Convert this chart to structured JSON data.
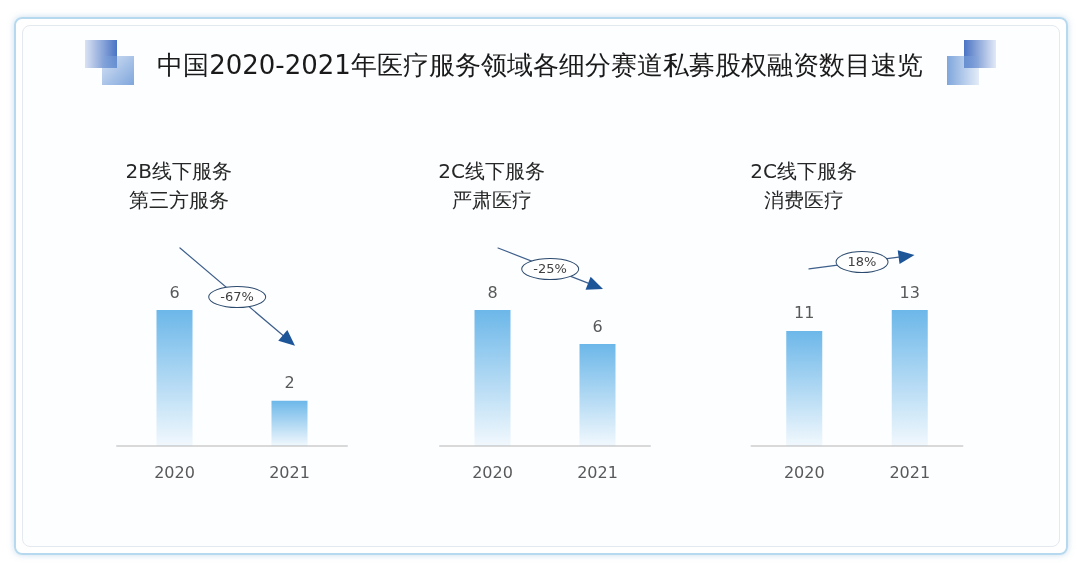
{
  "chart_data": [
    {
      "type": "other",
      "title": "中国2020-2021年医疗服务领域各细分赛道私募股权融资数目速览"
    },
    {
      "type": "bar",
      "title": "2B线下服务",
      "subtitle": "第三方服务",
      "categories": [
        "2020",
        "2021"
      ],
      "values": [
        6,
        2
      ],
      "color": "#6cb7e9",
      "data_labels": true,
      "tick_labels": "x",
      "annotations": [
        "-67%"
      ]
    },
    {
      "type": "bar",
      "title": "2C线下服务",
      "subtitle": "严肃医疗",
      "categories": [
        "2020",
        "2021"
      ],
      "values": [
        8,
        6
      ],
      "color": "#6cb7e9",
      "data_labels": true,
      "tick_labels": "x",
      "annotations": [
        "-25%"
      ]
    },
    {
      "type": "bar",
      "title": "2C线下服务",
      "subtitle": "消费医疗",
      "categories": [
        "2020",
        "2021"
      ],
      "values": [
        11,
        13
      ],
      "color": "#6cb7e9",
      "data_labels": true,
      "tick_labels": "x",
      "annotations": [
        "18%"
      ]
    }
  ]
}
